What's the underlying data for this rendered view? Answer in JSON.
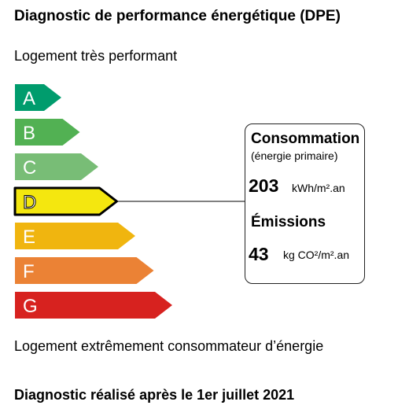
{
  "title": "Diagnostic de performance énergétique (DPE)",
  "labels": {
    "top": "Logement très performant",
    "bottom": "Logement extrêmement consommateur d’énergie",
    "footer": "Diagnostic réalisé après le 1er juillet 2021"
  },
  "panel": {
    "consumption_title": "Consommation",
    "consumption_subtitle": "(énergie primaire)",
    "consumption_value": "203",
    "consumption_unit": "kWh/m².an",
    "emissions_title": "Émissions",
    "emissions_value": "43",
    "emissions_unit": "kg CO²/m².an"
  },
  "chart_data": {
    "type": "bar",
    "categories": [
      "A",
      "B",
      "C",
      "D",
      "E",
      "F",
      "G"
    ],
    "colors": [
      "#009c6d",
      "#52b153",
      "#78bd76",
      "#f4e70f",
      "#f0b50f",
      "#eb8235",
      "#d7221f"
    ],
    "rank": [
      1,
      2,
      3,
      4,
      5,
      6,
      7
    ],
    "selected": "D",
    "consumption": 203,
    "emissions": 43
  }
}
